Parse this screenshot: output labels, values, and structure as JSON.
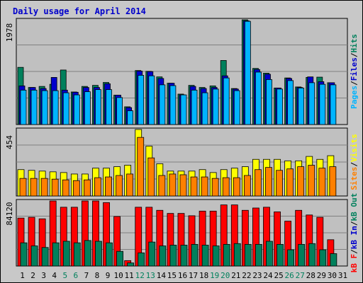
{
  "title": "Daily usage for April 2014",
  "colors": {
    "background": "#c8c8c8",
    "panel": "#c0c0c0",
    "title": "#0000cc",
    "hits": "#00805c",
    "files": "#0000cc",
    "pages": "#00b4ff",
    "visits": "#ffff00",
    "sites": "#ff8000",
    "kb_in": "#0000cc",
    "kb_out": "#00805c",
    "kb_f": "#ff0000",
    "weekend_label": "#00805c",
    "weekday_label": "#000080"
  },
  "legend": {
    "top": [
      "Pages",
      "/",
      "Files",
      "/",
      "Hits"
    ],
    "middle": [
      "Sites",
      "/",
      "Visits"
    ],
    "bottom": [
      "kB F",
      "/",
      "kB In",
      "/",
      "kB Out"
    ]
  },
  "chart_data": [
    {
      "type": "bar",
      "panel": "top",
      "y_max_label": "1978",
      "ylim": [
        0,
        1978
      ],
      "categories": [
        "1",
        "2",
        "3",
        "4",
        "5",
        "6",
        "7",
        "8",
        "9",
        "10",
        "11",
        "12",
        "13",
        "14",
        "15",
        "16",
        "17",
        "18",
        "19",
        "20",
        "21",
        "22",
        "23",
        "24",
        "25",
        "26",
        "27",
        "28",
        "29",
        "30",
        "31"
      ],
      "weekend": [
        "5",
        "6",
        "12",
        "13",
        "19",
        "20",
        "26",
        "27"
      ],
      "series": [
        {
          "name": "Hits",
          "values": [
            1080,
            700,
            720,
            760,
            1030,
            615,
            720,
            740,
            795,
            555,
            335,
            1020,
            1005,
            900,
            780,
            575,
            740,
            700,
            730,
            1210,
            680,
            1978,
            1060,
            970,
            690,
            880,
            710,
            890,
            895,
            790,
            0
          ]
        },
        {
          "name": "Files",
          "values": [
            730,
            700,
            680,
            890,
            650,
            610,
            700,
            700,
            770,
            555,
            320,
            1010,
            1000,
            870,
            780,
            560,
            720,
            680,
            700,
            920,
            670,
            1960,
            1040,
            950,
            690,
            870,
            700,
            900,
            810,
            790,
            0
          ]
        },
        {
          "name": "Pages",
          "values": [
            650,
            650,
            640,
            640,
            600,
            560,
            620,
            660,
            660,
            510,
            260,
            930,
            920,
            750,
            735,
            560,
            650,
            600,
            670,
            880,
            640,
            1950,
            990,
            850,
            670,
            830,
            690,
            790,
            760,
            750,
            0
          ]
        }
      ]
    },
    {
      "type": "bar",
      "panel": "middle",
      "y_max_label": "454",
      "ylim": [
        0,
        454
      ],
      "series": [
        {
          "name": "Visits",
          "values": [
            180,
            175,
            170,
            165,
            160,
            150,
            150,
            190,
            190,
            200,
            210,
            454,
            340,
            220,
            170,
            170,
            170,
            180,
            160,
            180,
            190,
            200,
            250,
            250,
            250,
            240,
            240,
            270,
            250,
            275,
            0
          ]
        },
        {
          "name": "Sites",
          "values": [
            120,
            120,
            120,
            115,
            110,
            105,
            110,
            125,
            130,
            140,
            150,
            400,
            260,
            140,
            150,
            145,
            130,
            130,
            120,
            125,
            125,
            140,
            180,
            195,
            175,
            185,
            200,
            210,
            190,
            200,
            0
          ]
        }
      ]
    },
    {
      "type": "bar",
      "panel": "bottom",
      "y_max_label": "84120",
      "ylim": [
        0,
        84120
      ],
      "series": [
        {
          "name": "kB F",
          "values": [
            62000,
            63000,
            61000,
            84120,
            76000,
            76000,
            84120,
            84120,
            82000,
            64000,
            7000,
            76000,
            76000,
            72000,
            68000,
            68000,
            65000,
            71000,
            71000,
            79000,
            79000,
            72000,
            75000,
            76000,
            70000,
            58000,
            72000,
            66000,
            63000,
            34000,
            0
          ]
        },
        {
          "name": "kB In",
          "values": [
            0,
            0,
            0,
            0,
            0,
            0,
            0,
            0,
            0,
            0,
            0,
            0,
            0,
            0,
            0,
            0,
            0,
            0,
            0,
            0,
            0,
            0,
            0,
            0,
            0,
            0,
            0,
            0,
            0,
            0,
            0
          ]
        },
        {
          "name": "kB Out",
          "values": [
            30000,
            26000,
            24000,
            30000,
            32000,
            30000,
            33000,
            32000,
            30000,
            19000,
            4000,
            17000,
            31000,
            26000,
            27000,
            27000,
            28000,
            27000,
            26000,
            28000,
            29000,
            28000,
            28000,
            32000,
            28000,
            21000,
            28000,
            29000,
            21000,
            16000,
            0
          ]
        }
      ]
    }
  ]
}
